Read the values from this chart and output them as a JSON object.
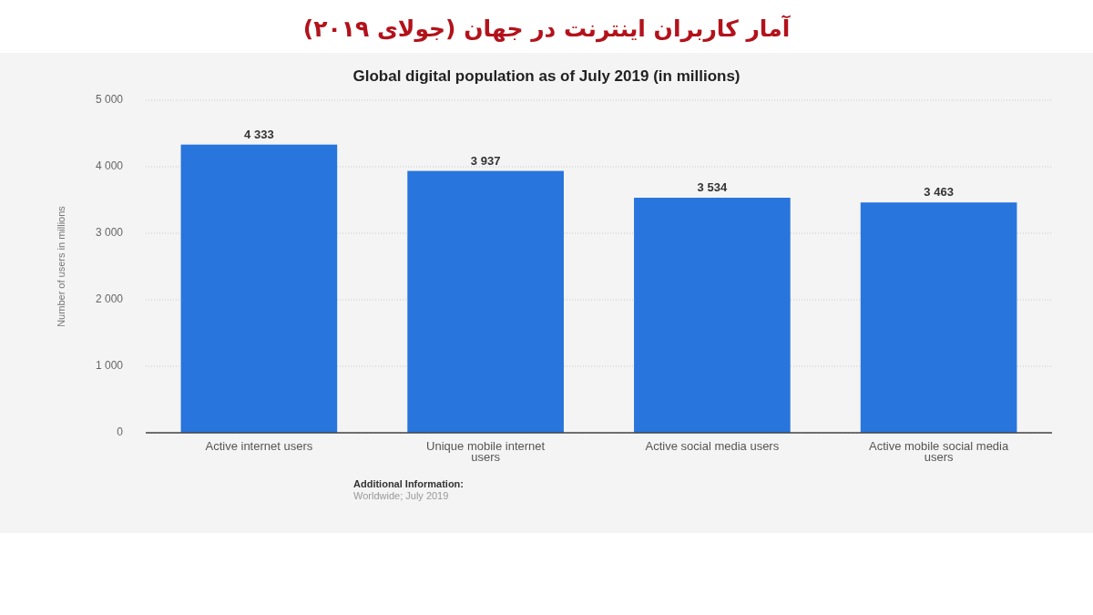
{
  "chart_data": {
    "type": "bar",
    "title": "آمار کاربران اینترنت در جهان (جولای ۲۰۱۹)",
    "subtitle": "Global digital population as of July 2019 (in millions)",
    "ylabel": "Number of users in millions",
    "categories": [
      "Active internet users",
      "Unique mobile internet users",
      "Active social media users",
      "Active mobile social media users"
    ],
    "values": [
      4333,
      3937,
      3534,
      3463
    ],
    "value_labels": [
      "4 333",
      "3 937",
      "3 534",
      "3 463"
    ],
    "color": "#2775dd",
    "ylim": [
      0,
      5000
    ],
    "yticks": [
      0,
      {
        "value": 1000,
        "label": "1 000"
      },
      {
        "value": 2000,
        "label": "2 000"
      },
      {
        "value": 3000,
        "label": "3 000"
      },
      {
        "value": 4000,
        "label": "4 000"
      },
      {
        "value": 5000,
        "label": "5 000"
      }
    ],
    "grid": true,
    "annotations": [
      "Additional Information:",
      "Worldwide; July 2019"
    ]
  }
}
